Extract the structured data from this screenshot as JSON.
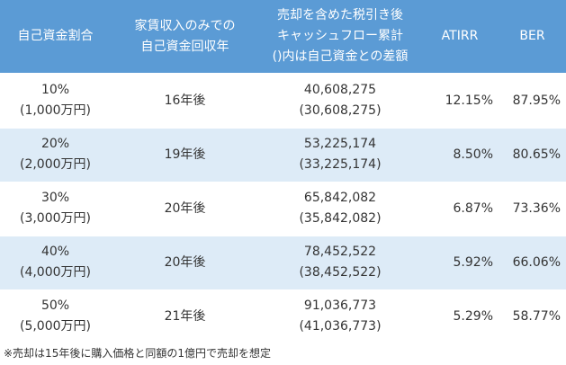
{
  "table": {
    "headers": [
      {
        "lines": [
          "自己資金割合"
        ]
      },
      {
        "lines": [
          "家賃収入のみでの",
          "自己資金回収年"
        ]
      },
      {
        "lines": [
          "売却を含めた税引き後",
          "キャッシュフロー累計",
          "()内は自己資金との差額"
        ]
      },
      {
        "lines": [
          "ATIRR"
        ]
      },
      {
        "lines": [
          "BER"
        ]
      }
    ],
    "rows": [
      {
        "ratio": "10%",
        "ratio_amount": "(1,000万円)",
        "payback": "16年後",
        "cf_total": "40,608,275",
        "cf_diff": "(30,608,275)",
        "atirr": "12.15%",
        "ber": "87.95%"
      },
      {
        "ratio": "20%",
        "ratio_amount": "(2,000万円)",
        "payback": "19年後",
        "cf_total": "53,225,174",
        "cf_diff": "(33,225,174)",
        "atirr": "8.50%",
        "ber": "80.65%"
      },
      {
        "ratio": "30%",
        "ratio_amount": "(3,000万円)",
        "payback": "20年後",
        "cf_total": "65,842,082",
        "cf_diff": "(35,842,082)",
        "atirr": "6.87%",
        "ber": "73.36%"
      },
      {
        "ratio": "40%",
        "ratio_amount": "(4,000万円)",
        "payback": "20年後",
        "cf_total": "78,452,522",
        "cf_diff": "(38,452,522)",
        "atirr": "5.92%",
        "ber": "66.06%"
      },
      {
        "ratio": "50%",
        "ratio_amount": "(5,000万円)",
        "payback": "21年後",
        "cf_total": "91,036,773",
        "cf_diff": "(41,036,773)",
        "atirr": "5.29%",
        "ber": "58.77%"
      }
    ]
  },
  "footnote": "※売却は15年後に購入価格と同額の1億円で売却を想定",
  "colors": {
    "header_bg": "#5b9bd5",
    "header_text": "#ffffff",
    "band_bg": "#ddebf7",
    "body_text": "#333333"
  }
}
